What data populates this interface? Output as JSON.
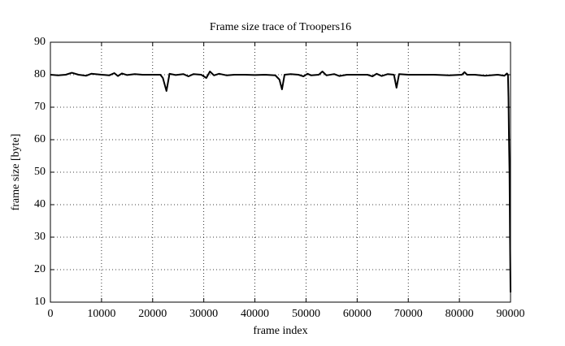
{
  "chart_data": {
    "type": "line",
    "title": "Frame size trace of Troopers16",
    "xlabel": "frame index",
    "ylabel": "frame size [byte]",
    "xlim": [
      0,
      90000
    ],
    "xticks": [
      0,
      10000,
      20000,
      30000,
      40000,
      50000,
      60000,
      70000,
      80000,
      90000
    ],
    "ylim": [
      10,
      90
    ],
    "yticks": [
      10,
      20,
      30,
      40,
      50,
      60,
      70,
      80,
      90
    ],
    "grid": true,
    "series": [
      {
        "color": "#000000",
        "x": [
          0,
          1500,
          3000,
          4200,
          5500,
          7000,
          8000,
          10000,
          11500,
          12500,
          13200,
          14000,
          15000,
          16500,
          18000,
          20000,
          21500,
          22000,
          22700,
          23300,
          24500,
          26000,
          27000,
          28000,
          29500,
          30500,
          31200,
          32000,
          33000,
          34500,
          36000,
          38000,
          40000,
          42000,
          44000,
          44800,
          45300,
          45800,
          47000,
          48500,
          49500,
          50300,
          51000,
          52500,
          53200,
          54000,
          55500,
          56500,
          58000,
          60000,
          62000,
          63000,
          63800,
          64800,
          66000,
          67200,
          67700,
          68200,
          70000,
          72000,
          75000,
          78000,
          80500,
          81000,
          81500,
          83000,
          85000,
          87500,
          88800,
          89300,
          89500,
          89600,
          89700,
          89800,
          89900,
          90000
        ],
        "values": [
          80,
          79.8,
          80,
          80.6,
          80,
          79.7,
          80.3,
          80,
          79.8,
          80.5,
          79.6,
          80.4,
          79.9,
          80.2,
          80,
          80,
          80,
          79,
          75,
          80.3,
          79.9,
          80.2,
          79.5,
          80.2,
          80,
          79,
          81,
          79.8,
          80.3,
          79.8,
          80,
          80,
          79.9,
          80,
          79.8,
          78.5,
          75.5,
          80,
          80.2,
          80,
          79.5,
          80.3,
          79.8,
          80,
          81,
          79.8,
          80.2,
          79.6,
          80,
          80,
          80,
          79.5,
          80.3,
          79.6,
          80.2,
          80,
          76,
          80.2,
          80,
          80,
          80,
          79.8,
          80,
          80.8,
          80,
          80,
          79.7,
          80,
          79.7,
          80.4,
          80,
          73,
          60,
          50,
          30,
          13
        ]
      }
    ]
  }
}
